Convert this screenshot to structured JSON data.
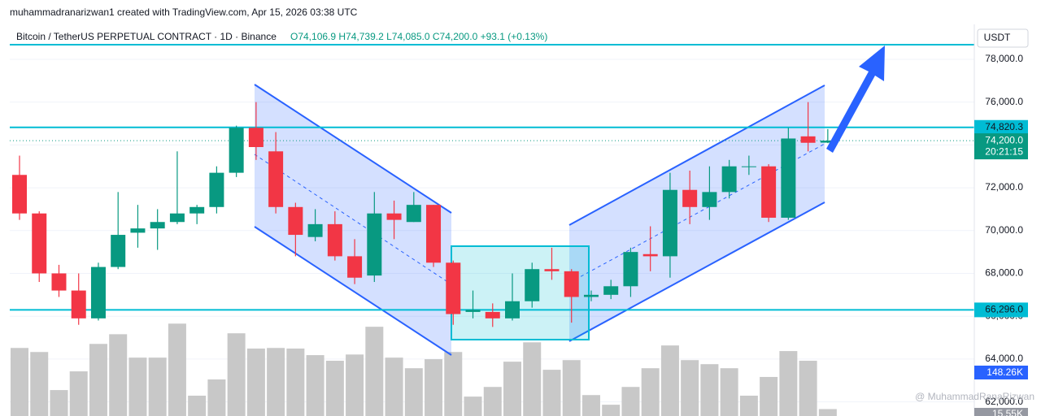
{
  "chart_data": {
    "type": "candlestick",
    "header": "muhammadranarizwan1 created with TradingView.com, Apr 15, 2026 03:38 UTC",
    "symbol": "Bitcoin / TetherUS PERPETUAL CONTRACT · 1D · Binance",
    "ohlc_text": [
      "O74,106.9",
      "H74,739.2",
      "L74,085.0",
      "C74,200.0",
      "+93.1 (+0.13%)"
    ],
    "currency": "USDT",
    "up_color": "#089981",
    "down_color": "#f23645",
    "volume_color": "#c8c8c8",
    "open": [
      72600,
      70800,
      68000,
      67200,
      65900,
      68300,
      69900,
      70100,
      70400,
      70800,
      71100,
      72700,
      74800,
      73700,
      71100,
      69700,
      70300,
      68800,
      67900,
      70800,
      70400,
      71200,
      68500,
      66200,
      66200,
      65900,
      66700,
      68200,
      68100,
      66900,
      67000,
      67400,
      68900,
      68800,
      71900,
      71100,
      71800,
      73000,
      73000,
      70600,
      74400,
      74106.9
    ],
    "high": [
      73500,
      70900,
      68400,
      68000,
      68500,
      71800,
      71200,
      71000,
      73700,
      71200,
      73000,
      74900,
      76000,
      74600,
      71300,
      71000,
      70900,
      69600,
      71800,
      71400,
      71800,
      71200,
      68600,
      67200,
      66600,
      68000,
      68500,
      69200,
      68200,
      67200,
      67700,
      69200,
      70200,
      72700,
      72800,
      73000,
      73300,
      73500,
      73100,
      74800,
      76000,
      74739.2
    ],
    "low": [
      70500,
      67600,
      66900,
      65600,
      65800,
      68200,
      69200,
      69100,
      70300,
      70300,
      70800,
      72500,
      73300,
      70800,
      68800,
      69500,
      68600,
      67500,
      67600,
      69600,
      70400,
      68300,
      65600,
      65900,
      65500,
      65800,
      66400,
      67700,
      65700,
      66700,
      66800,
      66900,
      68100,
      67800,
      70300,
      70500,
      71500,
      72600,
      70400,
      70500,
      73700,
      74085
    ],
    "close": [
      70800,
      68000,
      67200,
      65900,
      68300,
      69800,
      70100,
      70400,
      70800,
      71100,
      72700,
      74800,
      73900,
      71100,
      69800,
      70300,
      68800,
      67800,
      70800,
      70500,
      71200,
      68500,
      66100,
      66300,
      65900,
      66700,
      68200,
      68100,
      66900,
      67000,
      67400,
      69000,
      68800,
      71900,
      71100,
      71800,
      73000,
      73000,
      70600,
      74300,
      74100,
      74200
    ],
    "volume": [
      226,
      213,
      91,
      151,
      239,
      270,
      195,
      195,
      304,
      73,
      125,
      273,
      224,
      226,
      224,
      203,
      185,
      205,
      294,
      195,
      161,
      190,
      213,
      70,
      101,
      182,
      244,
      156,
      187,
      75,
      44,
      101,
      161,
      234,
      187,
      174,
      161,
      73,
      133,
      216,
      185,
      30
    ],
    "volume_lim": [
      0,
      310
    ],
    "ylim": [
      61340,
      79630
    ],
    "yticks": [
      {
        "value": 62000,
        "label": "62,000.0"
      },
      {
        "value": 64000,
        "label": "64,000.0"
      },
      {
        "value": 66000,
        "label": "66,000.0"
      },
      {
        "value": 68000,
        "label": "68,000.0"
      },
      {
        "value": 70000,
        "label": "70,000.0"
      },
      {
        "value": 72000,
        "label": "72,000.0"
      },
      {
        "value": 74000,
        "label": "74,000.0"
      },
      {
        "value": 76000,
        "label": "76,000.0"
      },
      {
        "value": 78000,
        "label": "78,000.0"
      }
    ],
    "grid": true,
    "levels": [
      {
        "value": 74820.3,
        "label": "74,820.3",
        "color": "#00bcd4"
      },
      {
        "value": 66296,
        "label": "66,296.0",
        "color": "#00bcd4"
      }
    ],
    "last_price": {
      "value": 74200,
      "label": "74,200.0",
      "countdown": "20:21:15"
    },
    "volume_labels": [
      "148.26K",
      "15.55K"
    ],
    "watermark": "@ MuhammadRanaRizwan"
  }
}
